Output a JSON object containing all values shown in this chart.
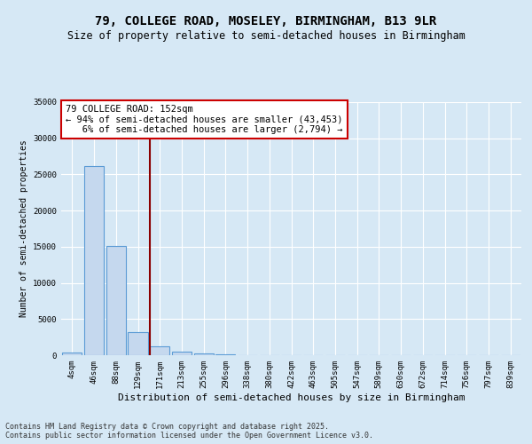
{
  "title_line1": "79, COLLEGE ROAD, MOSELEY, BIRMINGHAM, B13 9LR",
  "title_line2": "Size of property relative to semi-detached houses in Birmingham",
  "xlabel": "Distribution of semi-detached houses by size in Birmingham",
  "ylabel": "Number of semi-detached properties",
  "categories": [
    "4sqm",
    "46sqm",
    "88sqm",
    "129sqm",
    "171sqm",
    "213sqm",
    "255sqm",
    "296sqm",
    "338sqm",
    "380sqm",
    "422sqm",
    "463sqm",
    "505sqm",
    "547sqm",
    "589sqm",
    "630sqm",
    "672sqm",
    "714sqm",
    "756sqm",
    "797sqm",
    "839sqm"
  ],
  "values": [
    350,
    26100,
    15100,
    3200,
    1200,
    450,
    200,
    100,
    0,
    0,
    0,
    0,
    0,
    0,
    0,
    0,
    0,
    0,
    0,
    0,
    0
  ],
  "bar_color": "#c5d8ee",
  "bar_edge_color": "#5b9bd5",
  "vline_color": "#8b0000",
  "vline_pos": 3.55,
  "annotation_text": "79 COLLEGE ROAD: 152sqm\n← 94% of semi-detached houses are smaller (43,453)\n   6% of semi-detached houses are larger (2,794) →",
  "annotation_box_color": "#ffffff",
  "annotation_box_edge": "#cc0000",
  "ylim": [
    0,
    35000
  ],
  "yticks": [
    0,
    5000,
    10000,
    15000,
    20000,
    25000,
    30000,
    35000
  ],
  "ytick_labels": [
    "0",
    "5000",
    "10000",
    "15000",
    "20000",
    "25000",
    "30000",
    "35000"
  ],
  "background_color": "#d6e8f5",
  "plot_bg_color": "#d6e8f5",
  "grid_color": "#ffffff",
  "footer_text": "Contains HM Land Registry data © Crown copyright and database right 2025.\nContains public sector information licensed under the Open Government Licence v3.0.",
  "title_fontsize": 10,
  "subtitle_fontsize": 8.5,
  "tick_fontsize": 6.5,
  "ylabel_fontsize": 7,
  "xlabel_fontsize": 8,
  "annotation_fontsize": 7.5,
  "footer_fontsize": 6
}
